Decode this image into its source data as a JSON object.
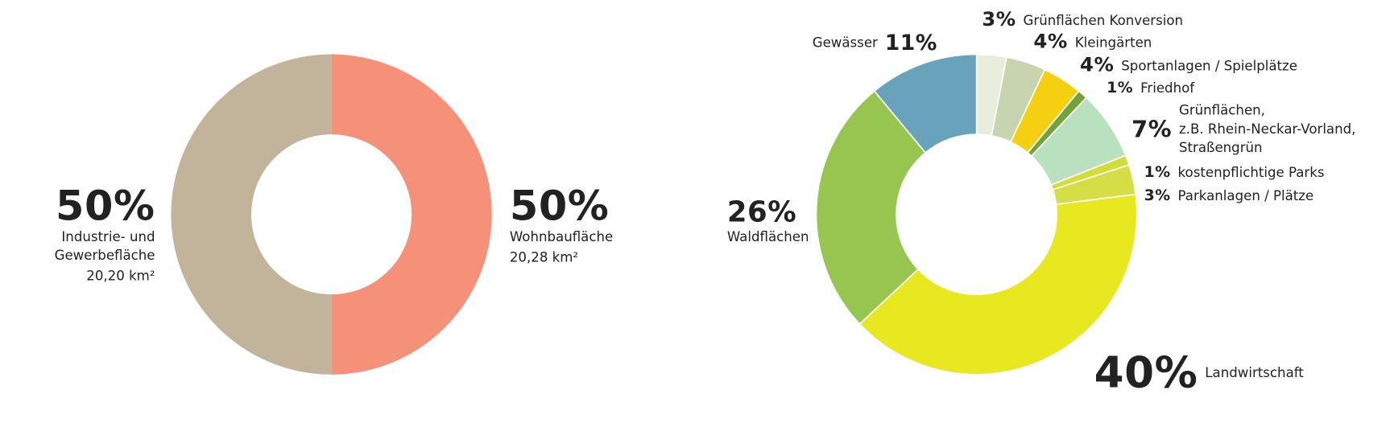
{
  "chart_data": [
    {
      "type": "donut",
      "categories": [
        "Wohnbaufläche",
        "Industrie- und\nGewerbefläche"
      ],
      "areas": [
        "20,28 km²",
        "20,20 km²"
      ],
      "values": [
        50,
        50
      ],
      "value_labels": [
        "50%",
        "50%"
      ],
      "colors": [
        "#f59079",
        "#c2b49b"
      ]
    },
    {
      "type": "donut",
      "categories": [
        "Grünflächen Konversion",
        "Kleingärten",
        "Sportanlagen / Spielplätze",
        "Friedhof",
        "Grünflächen,\nz.B. Rhein-Neckar-Vorland,\nStraßengrün",
        "kostenpflichtige Parks",
        "Parkanlagen / Plätze",
        "Landwirtschaft",
        "Waldflächen",
        "Gewässer"
      ],
      "values": [
        3,
        4,
        4,
        1,
        7,
        1,
        3,
        40,
        26,
        11
      ],
      "value_labels": [
        "3%",
        "4%",
        "4%",
        "1%",
        "7%",
        "1%",
        "3%",
        "40%",
        "26%",
        "11%"
      ],
      "colors": [
        "#e9eddc",
        "#c8d3b0",
        "#f5d010",
        "#72a33b",
        "#b9e0bf",
        "#d4dc38",
        "#d6de45",
        "#e8e820",
        "#96c550",
        "#68a3bb"
      ]
    }
  ]
}
